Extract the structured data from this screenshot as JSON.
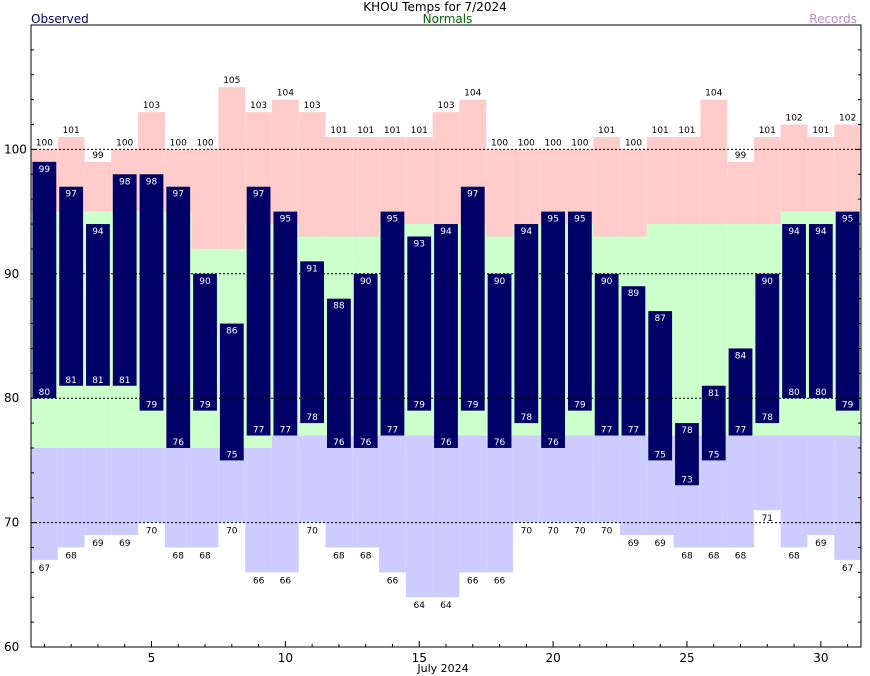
{
  "chart_data": {
    "type": "bar",
    "title": "KHOU Temps for 7/2024",
    "xlabel": "July 2024",
    "ylabel": "",
    "ylim": [
      60,
      110
    ],
    "xlim": [
      0.5,
      31.5
    ],
    "x_ticks": [
      5,
      10,
      15,
      20,
      25,
      30
    ],
    "y_ticks": [
      60,
      70,
      80,
      90,
      100
    ],
    "gridlines_y": [
      70,
      80,
      90,
      100
    ],
    "legend": {
      "observed": "Observed",
      "normals": "Normals",
      "records": "Records",
      "placement": "top"
    },
    "colors": {
      "observed": "#000066",
      "observed_label": "#000066",
      "normals_label": "#006600",
      "records_label": "#bb88cc",
      "record_high_fill": "#ffcccc",
      "normal_fill": "#ccffcc",
      "record_low_fill": "#ccccff"
    },
    "days": [
      1,
      2,
      3,
      4,
      5,
      6,
      7,
      8,
      9,
      10,
      11,
      12,
      13,
      14,
      15,
      16,
      17,
      18,
      19,
      20,
      21,
      22,
      23,
      24,
      25,
      26,
      27,
      28,
      29,
      30,
      31
    ],
    "series": [
      {
        "name": "Observed",
        "key": "obs_high",
        "values": [
          99,
          97,
          94,
          98,
          98,
          97,
          90,
          86,
          97,
          95,
          91,
          88,
          90,
          95,
          93,
          94,
          97,
          90,
          94,
          95,
          95,
          90,
          89,
          87,
          78,
          81,
          84,
          90,
          94,
          94,
          95
        ]
      },
      {
        "name": "Observed",
        "key": "obs_low",
        "values": [
          80,
          81,
          81,
          81,
          79,
          76,
          79,
          75,
          77,
          77,
          78,
          76,
          76,
          77,
          79,
          76,
          79,
          76,
          78,
          76,
          79,
          77,
          77,
          75,
          73,
          75,
          77,
          78,
          80,
          80,
          79
        ]
      },
      {
        "name": "Normals",
        "key": "normal_high",
        "values": [
          95,
          95,
          95,
          95,
          95,
          95,
          92,
          92,
          94,
          94,
          93,
          93,
          93,
          94,
          94,
          94,
          94,
          93,
          94,
          94,
          94,
          93,
          93,
          94,
          94,
          94,
          94,
          94,
          95,
          95,
          95
        ]
      },
      {
        "name": "Normals",
        "key": "normal_low",
        "values": [
          76,
          76,
          76,
          76,
          76,
          76,
          76,
          76,
          76,
          77,
          77,
          77,
          77,
          77,
          77,
          77,
          77,
          77,
          77,
          77,
          77,
          77,
          77,
          77,
          77,
          77,
          77,
          77,
          77,
          77,
          77
        ]
      },
      {
        "name": "Records",
        "key": "record_high",
        "values": [
          100,
          101,
          99,
          100,
          103,
          100,
          100,
          105,
          103,
          104,
          103,
          101,
          101,
          101,
          101,
          103,
          104,
          100,
          100,
          100,
          100,
          101,
          100,
          101,
          101,
          104,
          99,
          101,
          102,
          101,
          102
        ]
      },
      {
        "name": "Records",
        "key": "record_low",
        "values": [
          67,
          68,
          69,
          69,
          70,
          68,
          68,
          70,
          66,
          66,
          70,
          68,
          68,
          66,
          64,
          64,
          66,
          66,
          70,
          70,
          70,
          70,
          69,
          69,
          68,
          68,
          68,
          71,
          68,
          69,
          67
        ]
      }
    ]
  }
}
